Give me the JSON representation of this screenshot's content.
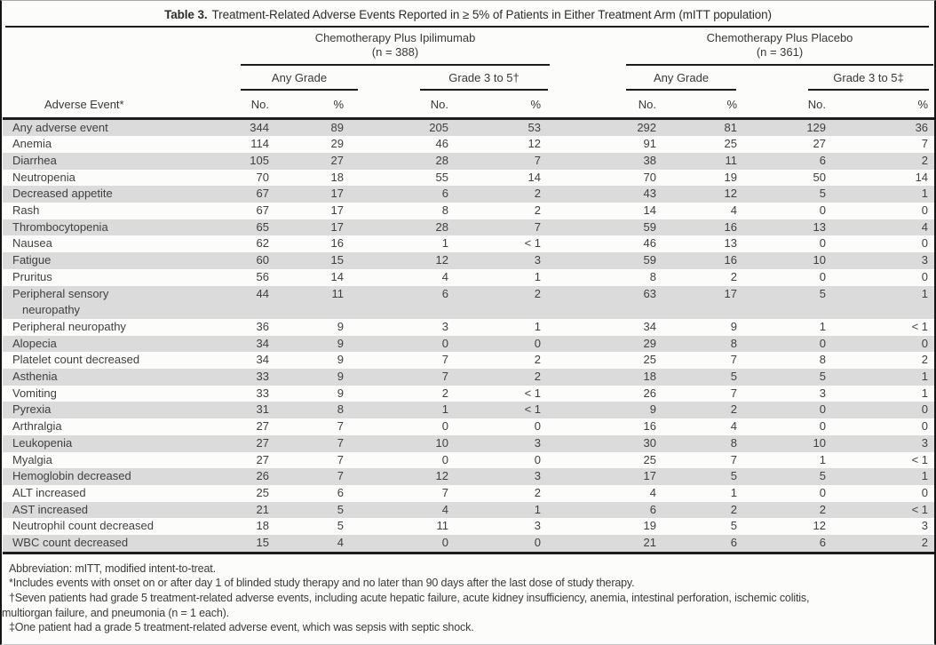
{
  "title": {
    "label": "Table 3.",
    "text": "Treatment-Related Adverse Events Reported in ≥ 5% of Patients in Either Treatment Arm (mITT population)"
  },
  "columns": {
    "row_header": "Adverse Event*",
    "groups": [
      {
        "name": "Chemotherapy Plus Ipilimumab",
        "n_label": "(n = 388)",
        "subgroups": [
          {
            "label": "Any Grade"
          },
          {
            "label": "Grade 3 to 5†"
          }
        ]
      },
      {
        "name": "Chemotherapy Plus Placebo",
        "n_label": "(n = 361)",
        "subgroups": [
          {
            "label": "Any Grade"
          },
          {
            "label": "Grade 3 to 5‡"
          }
        ]
      }
    ],
    "value_headers": [
      "No.",
      "%"
    ]
  },
  "table": {
    "rows": [
      {
        "event_lines": [
          "Any adverse event"
        ],
        "values": [
          "344",
          "89",
          "205",
          "53",
          "292",
          "81",
          "129",
          "36"
        ]
      },
      {
        "event_lines": [
          "Anemia"
        ],
        "values": [
          "114",
          "29",
          "46",
          "12",
          "91",
          "25",
          "27",
          "7"
        ]
      },
      {
        "event_lines": [
          "Diarrhea"
        ],
        "values": [
          "105",
          "27",
          "28",
          "7",
          "38",
          "11",
          "6",
          "2"
        ]
      },
      {
        "event_lines": [
          "Neutropenia"
        ],
        "values": [
          "70",
          "18",
          "55",
          "14",
          "70",
          "19",
          "50",
          "14"
        ]
      },
      {
        "event_lines": [
          "Decreased appetite"
        ],
        "values": [
          "67",
          "17",
          "6",
          "2",
          "43",
          "12",
          "5",
          "1"
        ]
      },
      {
        "event_lines": [
          "Rash"
        ],
        "values": [
          "67",
          "17",
          "8",
          "2",
          "14",
          "4",
          "0",
          "0"
        ]
      },
      {
        "event_lines": [
          "Thrombocytopenia"
        ],
        "values": [
          "65",
          "17",
          "28",
          "7",
          "59",
          "16",
          "13",
          "4"
        ]
      },
      {
        "event_lines": [
          "Nausea"
        ],
        "values": [
          "62",
          "16",
          "1",
          "< 1",
          "46",
          "13",
          "0",
          "0"
        ]
      },
      {
        "event_lines": [
          "Fatigue"
        ],
        "values": [
          "60",
          "15",
          "12",
          "3",
          "59",
          "16",
          "10",
          "3"
        ]
      },
      {
        "event_lines": [
          "Pruritus"
        ],
        "values": [
          "56",
          "14",
          "4",
          "1",
          "8",
          "2",
          "0",
          "0"
        ]
      },
      {
        "event_lines": [
          "Peripheral sensory",
          "neuropathy"
        ],
        "values": [
          "44",
          "11",
          "6",
          "2",
          "63",
          "17",
          "5",
          "1"
        ]
      },
      {
        "event_lines": [
          "Peripheral neuropathy"
        ],
        "values": [
          "36",
          "9",
          "3",
          "1",
          "34",
          "9",
          "1",
          "< 1"
        ]
      },
      {
        "event_lines": [
          "Alopecia"
        ],
        "values": [
          "34",
          "9",
          "0",
          "0",
          "29",
          "8",
          "0",
          "0"
        ]
      },
      {
        "event_lines": [
          "Platelet count decreased"
        ],
        "values": [
          "34",
          "9",
          "7",
          "2",
          "25",
          "7",
          "8",
          "2"
        ]
      },
      {
        "event_lines": [
          "Asthenia"
        ],
        "values": [
          "33",
          "9",
          "7",
          "2",
          "18",
          "5",
          "5",
          "1"
        ]
      },
      {
        "event_lines": [
          "Vomiting"
        ],
        "values": [
          "33",
          "9",
          "2",
          "< 1",
          "26",
          "7",
          "3",
          "1"
        ]
      },
      {
        "event_lines": [
          "Pyrexia"
        ],
        "values": [
          "31",
          "8",
          "1",
          "< 1",
          "9",
          "2",
          "0",
          "0"
        ]
      },
      {
        "event_lines": [
          "Arthralgia"
        ],
        "values": [
          "27",
          "7",
          "0",
          "0",
          "16",
          "4",
          "0",
          "0"
        ]
      },
      {
        "event_lines": [
          "Leukopenia"
        ],
        "values": [
          "27",
          "7",
          "10",
          "3",
          "30",
          "8",
          "10",
          "3"
        ]
      },
      {
        "event_lines": [
          "Myalgia"
        ],
        "values": [
          "27",
          "7",
          "0",
          "0",
          "25",
          "7",
          "1",
          "< 1"
        ]
      },
      {
        "event_lines": [
          "Hemoglobin decreased"
        ],
        "values": [
          "26",
          "7",
          "12",
          "3",
          "17",
          "5",
          "5",
          "1"
        ]
      },
      {
        "event_lines": [
          "ALT increased"
        ],
        "values": [
          "25",
          "6",
          "7",
          "2",
          "4",
          "1",
          "0",
          "0"
        ]
      },
      {
        "event_lines": [
          "AST increased"
        ],
        "values": [
          "21",
          "5",
          "4",
          "1",
          "6",
          "2",
          "2",
          "< 1"
        ]
      },
      {
        "event_lines": [
          "Neutrophil count decreased"
        ],
        "values": [
          "18",
          "5",
          "11",
          "3",
          "19",
          "5",
          "12",
          "3"
        ]
      },
      {
        "event_lines": [
          "WBC count decreased"
        ],
        "values": [
          "15",
          "4",
          "0",
          "0",
          "21",
          "6",
          "6",
          "2"
        ]
      }
    ]
  },
  "footnotes": [
    {
      "text": "Abbreviation: mITT, modified intent-to-treat.",
      "flush": false
    },
    {
      "text": "*Includes events with onset on or after day 1 of blinded study therapy and no later than 90 days after the last dose of study therapy.",
      "flush": false
    },
    {
      "text": "†Seven patients had grade 5 treatment-related adverse events, including acute hepatic failure, acute kidney insufficiency, anemia, intestinal perforation, ischemic colitis,",
      "flush": false
    },
    {
      "text": "multiorgan failure, and pneumonia (n = 1 each).",
      "flush": true
    },
    {
      "text": "‡One patient had a grade 5 treatment-related adverse event, which was sepsis with septic shock.",
      "flush": false
    }
  ],
  "colors": {
    "stripe": "#dbdbdb",
    "rule": "#1c1c1c",
    "text": "#3f3f3f",
    "bg": "#fcfcfb"
  }
}
